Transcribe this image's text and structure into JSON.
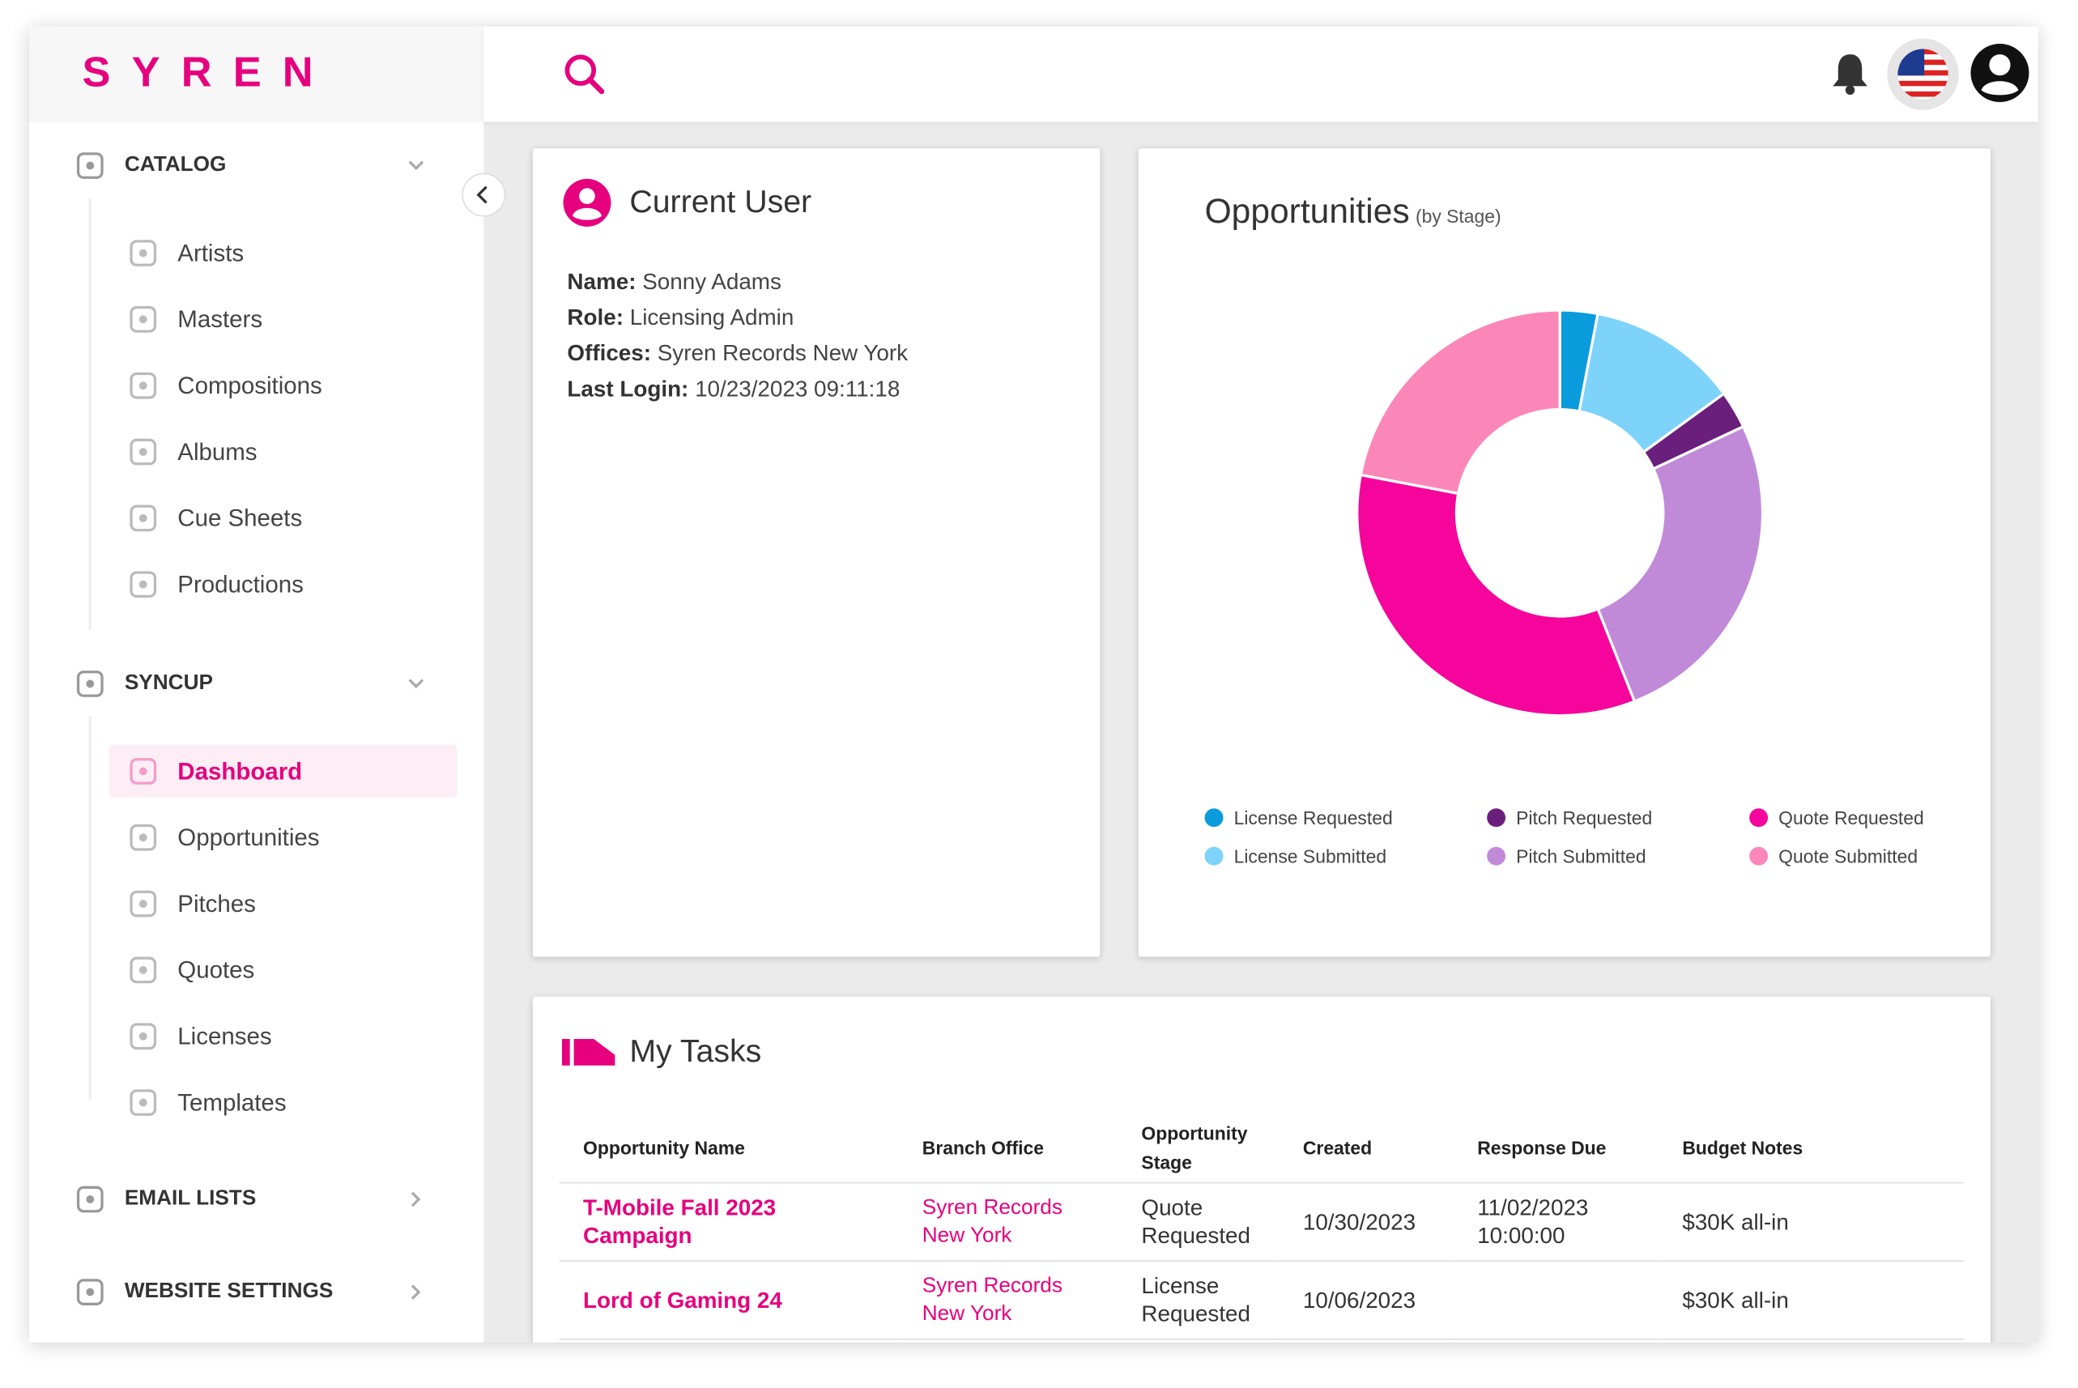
{
  "logo": "SYREN",
  "sidebar": {
    "sections": [
      {
        "title": "CATALOG",
        "items": [
          "Artists",
          "Masters",
          "Compositions",
          "Albums",
          "Cue Sheets",
          "Productions"
        ]
      },
      {
        "title": "SYNCUP",
        "items": [
          "Dashboard",
          "Opportunities",
          "Pitches",
          "Quotes",
          "Licenses",
          "Templates"
        ],
        "active": "Dashboard"
      },
      {
        "title": "EMAIL LISTS",
        "items": []
      },
      {
        "title": "WEBSITE SETTINGS",
        "items": []
      }
    ]
  },
  "current_user": {
    "title": "Current User",
    "fields": [
      {
        "label": "Name:",
        "value": "Sonny Adams"
      },
      {
        "label": "Role:",
        "value": "Licensing Admin"
      },
      {
        "label": "Offices:",
        "value": "Syren Records New York"
      },
      {
        "label": "Last Login:",
        "value": "10/23/2023  09:11:18"
      }
    ]
  },
  "chart_data": {
    "type": "pie",
    "title": "Opportunities",
    "subtitle": "(by Stage)",
    "categories": [
      "License Requested",
      "License Submitted",
      "Pitch Requested",
      "Pitch Submitted",
      "Quote Requested",
      "Quote Submitted"
    ],
    "values": [
      3,
      12,
      3,
      26,
      34,
      22
    ],
    "colors": [
      "#0a9bdc",
      "#7dd3fa",
      "#6a1f7d",
      "#c08ad9",
      "#f5059b",
      "#fb87b9"
    ],
    "donut": true
  },
  "tasks": {
    "title": "My Tasks",
    "columns": [
      "Opportunity Name",
      "Branch Office",
      "Opportunity Stage",
      "Created",
      "Response Due",
      "Budget Notes"
    ],
    "rows": [
      [
        "T-Mobile Fall 2023 Campaign",
        "Syren Records New York",
        "Quote Requested",
        "10/30/2023",
        "11/02/2023 10:00:00",
        "$30K all-in"
      ],
      [
        "Lord of Gaming 24",
        "Syren Records New York",
        "License Requested",
        "10/06/2023",
        "",
        "$30K all-in"
      ]
    ]
  }
}
